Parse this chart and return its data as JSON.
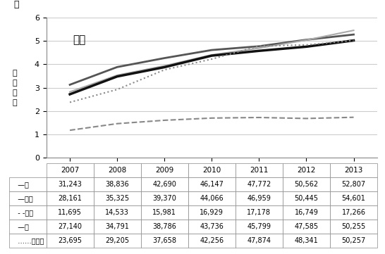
{
  "years": [
    2007,
    2008,
    2009,
    2010,
    2011,
    2012,
    2013
  ],
  "series": {
    "胃": [
      31243,
      38836,
      42690,
      46147,
      47772,
      50562,
      52807
    ],
    "大腸": [
      28161,
      35325,
      39370,
      44066,
      46959,
      50445,
      54601
    ],
    "肝臓": [
      11695,
      14533,
      15981,
      16929,
      17178,
      16749,
      17266
    ],
    "肺": [
      27140,
      34791,
      38786,
      43736,
      45799,
      47585,
      50255
    ],
    "前立腺": [
      23695,
      29205,
      37658,
      42256,
      47874,
      48341,
      50257
    ]
  },
  "line_styles": {
    "胃": {
      "color": "#555555",
      "linestyle": "-",
      "linewidth": 2.0,
      "label": "胃"
    },
    "大腸": {
      "color": "#aaaaaa",
      "linestyle": "-",
      "linewidth": 1.5,
      "label": "大腸"
    },
    "肝臓": {
      "color": "#888888",
      "linestyle": "--",
      "linewidth": 1.5,
      "label": "肝臓"
    },
    "肺": {
      "color": "#111111",
      "linestyle": "-",
      "linewidth": 2.5,
      "label": "肺"
    },
    "前立腺": {
      "color": "#888888",
      "linestyle": ":",
      "linewidth": 1.5,
      "label": "前立腺"
    }
  },
  "title_text": "男性",
  "ylabel_text": "全\n登\n録\n数",
  "unit_text": "万",
  "ylim": [
    0,
    6
  ],
  "yticks": [
    0,
    1,
    2,
    3,
    4,
    5,
    6
  ],
  "table_data": {
    "胃": [
      31243,
      38836,
      42690,
      46147,
      47772,
      50562,
      52807
    ],
    "大腸": [
      28161,
      35325,
      39370,
      44066,
      46959,
      50445,
      54601
    ],
    "肝臓": [
      11695,
      14533,
      15981,
      16929,
      17178,
      16749,
      17266
    ],
    "肺": [
      27140,
      34791,
      38786,
      43736,
      45799,
      47585,
      50255
    ],
    "前立腺": [
      23695,
      29205,
      37658,
      42256,
      47874,
      48341,
      50257
    ]
  },
  "row_labels": [
    "胃",
    "大腸",
    "肝臓",
    "肺",
    "前立腺"
  ],
  "col_labels": [
    "2007",
    "2008",
    "2009",
    "2010",
    "2011",
    "2012",
    "2013"
  ],
  "background_color": "#ffffff",
  "grid_color": "#cccccc"
}
